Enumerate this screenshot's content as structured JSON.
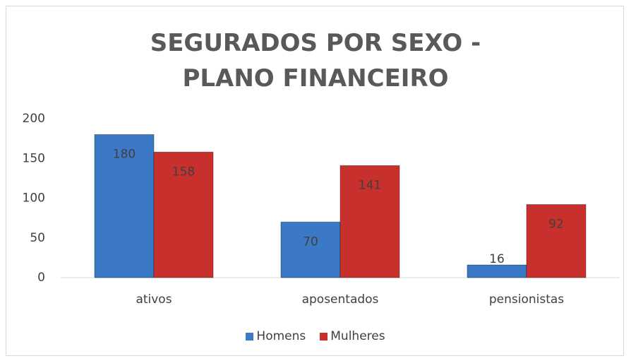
{
  "chart_data": {
    "type": "bar",
    "title": "SEGURADOS POR SEXO - PLANO FINANCEIRO",
    "categories": [
      "ativos",
      "aposentados",
      "pensionistas"
    ],
    "series": [
      {
        "name": "Homens",
        "color": "#3b78c6",
        "values": [
          180,
          70,
          16
        ]
      },
      {
        "name": "Mulheres",
        "color": "#c8302d",
        "values": [
          158,
          141,
          92
        ]
      }
    ],
    "ylim": [
      0,
      200
    ],
    "yticks": [
      0,
      50,
      100,
      150,
      200
    ],
    "grid": false,
    "legend": "bottom"
  }
}
